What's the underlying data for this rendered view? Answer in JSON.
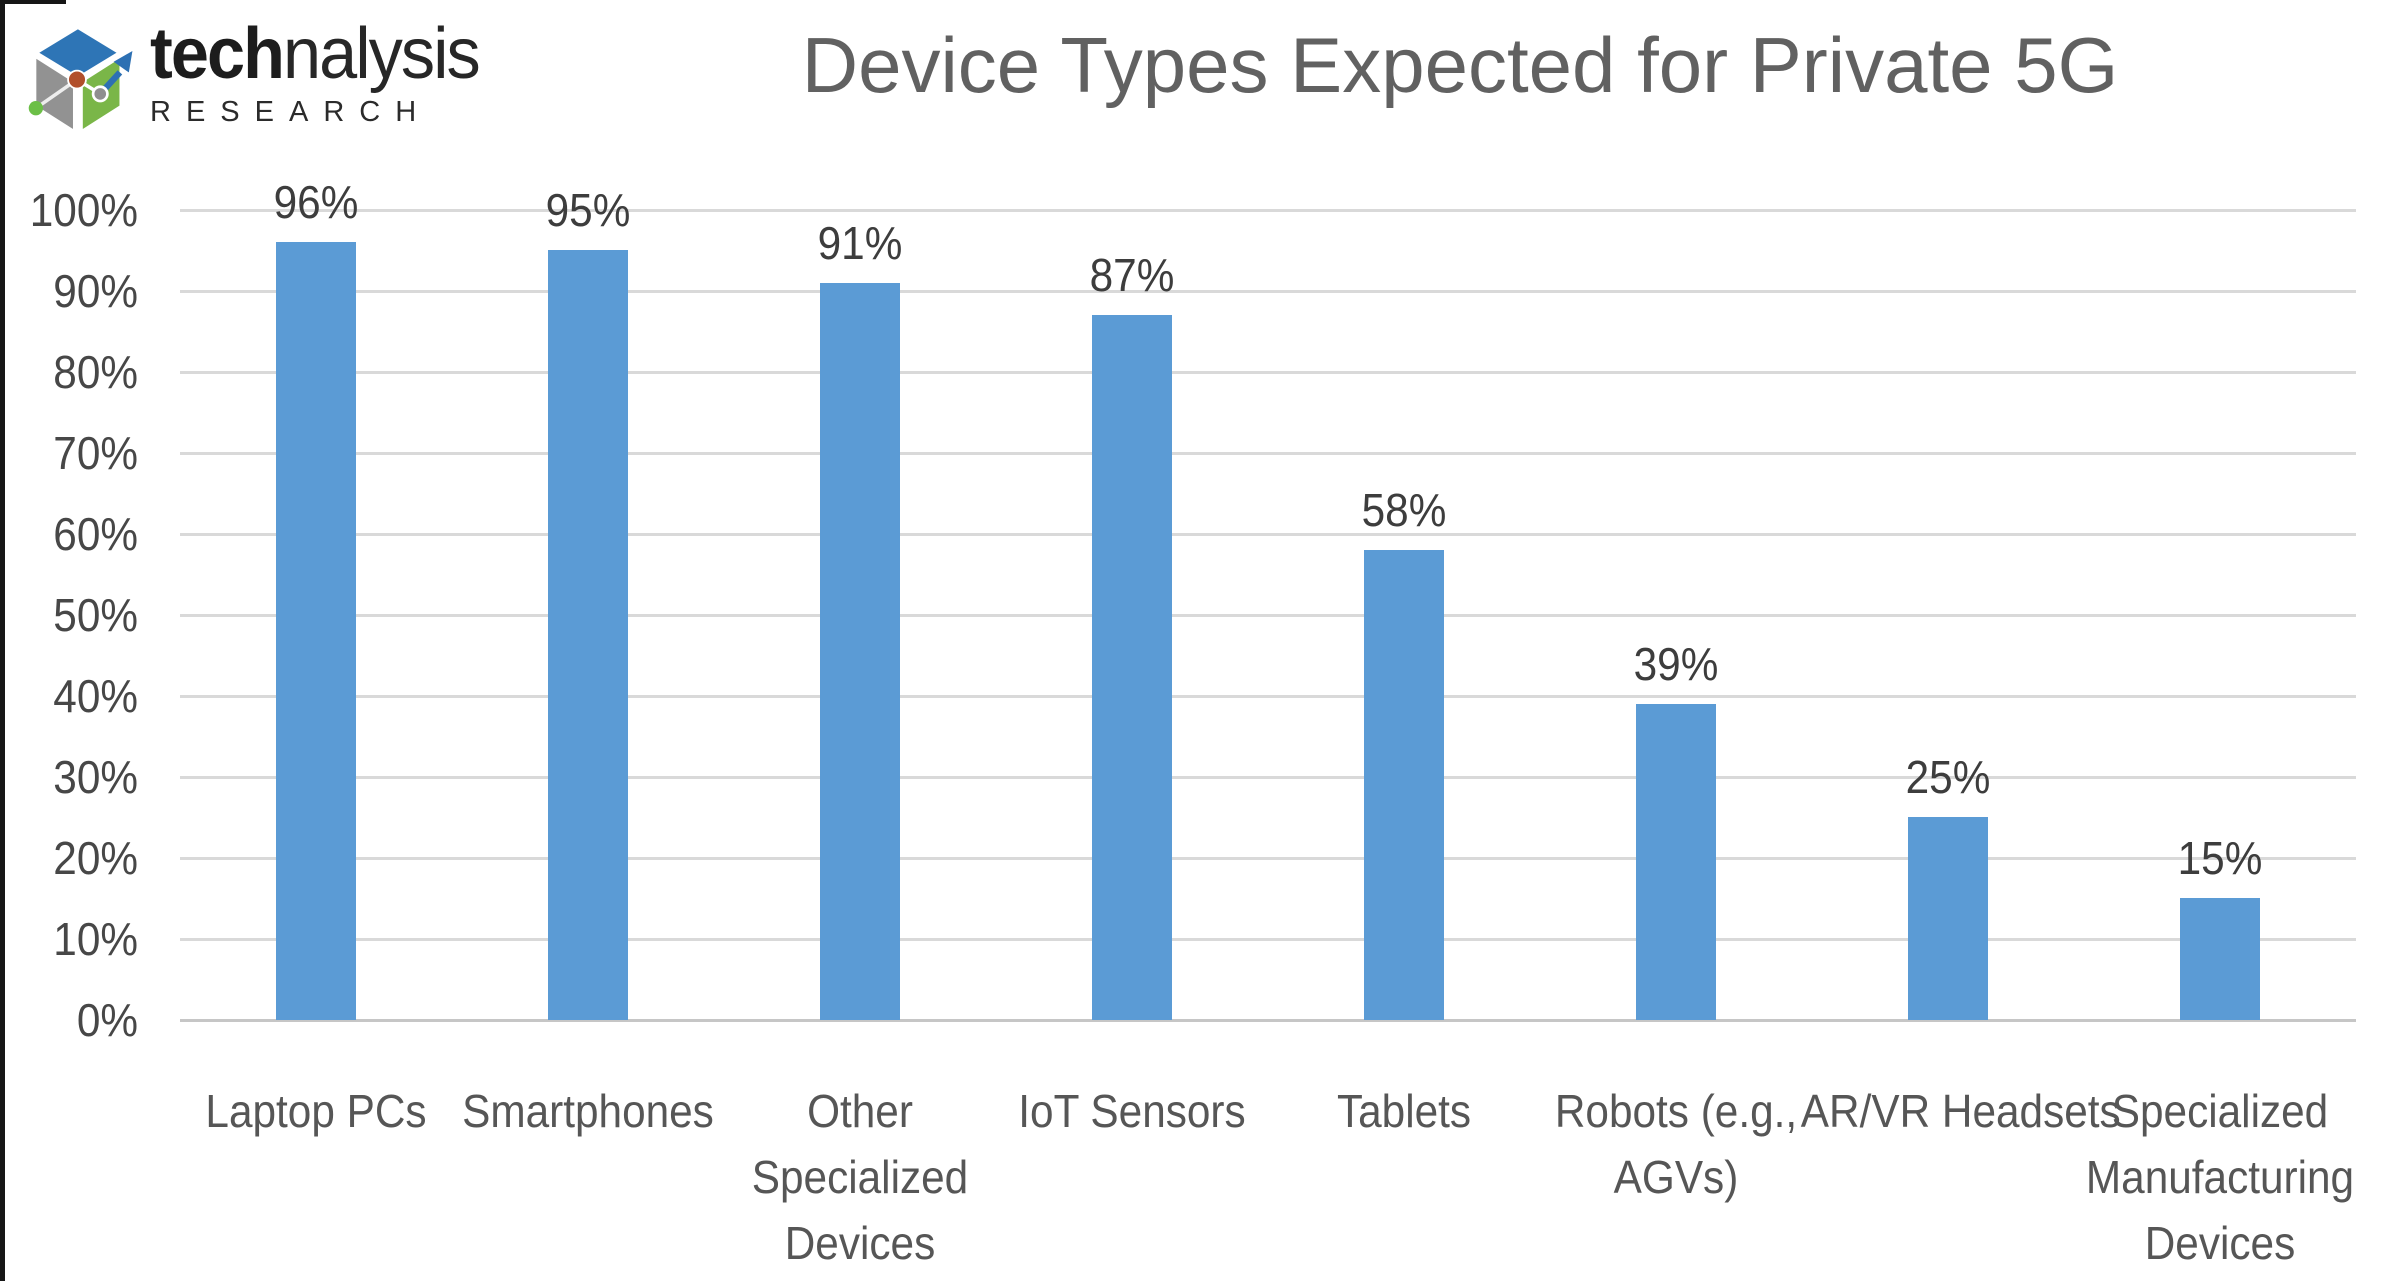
{
  "logo": {
    "brand_bold": "tech",
    "brand_light": "nalysis",
    "subtitle": "RESEARCH",
    "colors": {
      "cube_top": "#2e75b6",
      "cube_left": "#929292",
      "cube_right": "#7ab648",
      "dot_orange": "#b14f2b",
      "dot_gray": "#8f8f8f",
      "dot_green": "#6cbf47",
      "arrow_blue": "#2d70b3"
    }
  },
  "chart_data": {
    "type": "bar",
    "title": "Device Types Expected for Private 5G",
    "categories": [
      "Laptop PCs",
      "Smartphones",
      "Other Specialized Devices",
      "IoT Sensors",
      "Tablets",
      "Robots (e.g., AGVs)",
      "AR/VR Headsets",
      "Specialized Manufacturing Devices"
    ],
    "category_lines": [
      [
        "Laptop PCs"
      ],
      [
        "Smartphones"
      ],
      [
        "Other",
        "Specialized",
        "Devices"
      ],
      [
        "IoT Sensors"
      ],
      [
        "Tablets"
      ],
      [
        "Robots (e.g.,",
        "AGVs)"
      ],
      [
        "AR/VR Headsets"
      ],
      [
        "Specialized",
        "Manufacturing",
        "Devices"
      ]
    ],
    "values": [
      96,
      95,
      91,
      87,
      58,
      39,
      25,
      15
    ],
    "data_labels": [
      "96%",
      "95%",
      "91%",
      "87%",
      "58%",
      "39%",
      "25%",
      "15%"
    ],
    "y_ticks": [
      "0%",
      "10%",
      "20%",
      "30%",
      "40%",
      "50%",
      "60%",
      "70%",
      "80%",
      "90%",
      "100%"
    ],
    "ylim": [
      0,
      100
    ],
    "grid": true,
    "legend": false,
    "xlabel": "",
    "ylabel": "",
    "bar_color": "#5b9bd5",
    "gridline_color": "#d9d9d9"
  }
}
